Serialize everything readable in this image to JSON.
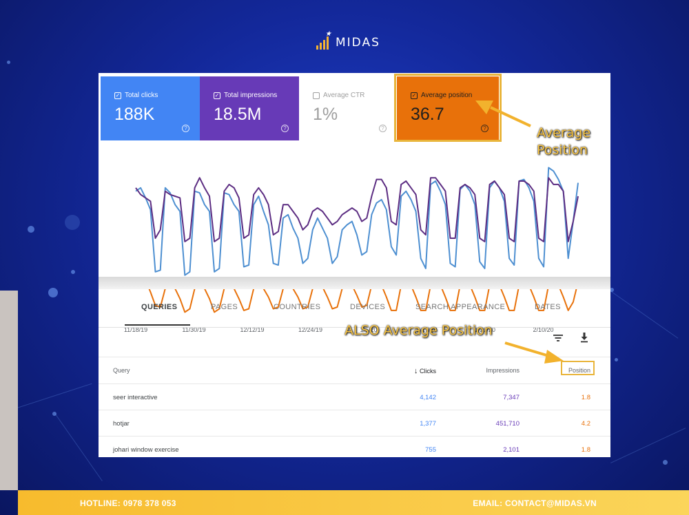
{
  "brand": {
    "name": "MIDAS"
  },
  "metrics": [
    {
      "label": "Total clicks",
      "value": "188K",
      "checked": true,
      "color": "#4285f4"
    },
    {
      "label": "Total impressions",
      "value": "18.5M",
      "checked": true,
      "color": "#673ab7"
    },
    {
      "label": "Average CTR",
      "value": "1%",
      "checked": false,
      "color": "#ffffff"
    },
    {
      "label": "Average position",
      "value": "36.7",
      "checked": true,
      "color": "#e8710a"
    }
  ],
  "chart_data": {
    "type": "line",
    "x_tick_labels": [
      "11/18/19",
      "11/30/19",
      "12/12/19",
      "12/24/19",
      "1/5/20",
      "1/17/20",
      "1/29/20",
      "2/10/20"
    ],
    "series": [
      {
        "metric": "Total clicks",
        "color": "#4d8fd1",
        "values": [
          0.78,
          0.8,
          0.74,
          0.67,
          0.3,
          0.31,
          0.8,
          0.77,
          0.7,
          0.66,
          0.28,
          0.3,
          0.78,
          0.77,
          0.7,
          0.66,
          0.3,
          0.32,
          0.77,
          0.76,
          0.7,
          0.66,
          0.33,
          0.34,
          0.7,
          0.75,
          0.66,
          0.58,
          0.35,
          0.34,
          0.62,
          0.64,
          0.56,
          0.5,
          0.35,
          0.38,
          0.55,
          0.62,
          0.56,
          0.5,
          0.35,
          0.39,
          0.55,
          0.58,
          0.6,
          0.52,
          0.4,
          0.42,
          0.64,
          0.71,
          0.73,
          0.67,
          0.45,
          0.4,
          0.75,
          0.78,
          0.73,
          0.66,
          0.38,
          0.32,
          0.82,
          0.84,
          0.78,
          0.7,
          0.35,
          0.33,
          0.79,
          0.82,
          0.78,
          0.7,
          0.36,
          0.32,
          0.8,
          0.84,
          0.8,
          0.72,
          0.38,
          0.34,
          0.84,
          0.85,
          0.8,
          0.72,
          0.38,
          0.33,
          0.92,
          0.9,
          0.85,
          0.78,
          0.38,
          0.6,
          0.83
        ]
      },
      {
        "metric": "Total impressions",
        "color": "#5c2d82",
        "values": [
          0.8,
          0.76,
          0.74,
          0.72,
          0.5,
          0.55,
          0.78,
          0.76,
          0.75,
          0.74,
          0.48,
          0.5,
          0.8,
          0.86,
          0.8,
          0.75,
          0.48,
          0.5,
          0.78,
          0.82,
          0.8,
          0.74,
          0.5,
          0.52,
          0.76,
          0.8,
          0.76,
          0.7,
          0.52,
          0.54,
          0.7,
          0.7,
          0.66,
          0.62,
          0.55,
          0.58,
          0.66,
          0.68,
          0.66,
          0.62,
          0.58,
          0.6,
          0.64,
          0.66,
          0.68,
          0.66,
          0.6,
          0.62,
          0.75,
          0.85,
          0.85,
          0.8,
          0.6,
          0.58,
          0.82,
          0.84,
          0.8,
          0.76,
          0.55,
          0.52,
          0.86,
          0.86,
          0.82,
          0.78,
          0.5,
          0.5,
          0.8,
          0.82,
          0.8,
          0.76,
          0.5,
          0.48,
          0.82,
          0.84,
          0.8,
          0.76,
          0.5,
          0.48,
          0.84,
          0.84,
          0.82,
          0.78,
          0.5,
          0.48,
          0.86,
          0.82,
          0.82,
          0.78,
          0.48,
          0.6,
          0.75
        ]
      },
      {
        "metric": "Average position",
        "color": "#e8710a",
        "values": [
          0.24,
          0.26,
          0.25,
          0.18,
          0.1,
          0.09,
          0.2,
          0.22,
          0.2,
          0.14,
          0.06,
          0.08,
          0.2,
          0.22,
          0.2,
          0.14,
          0.06,
          0.08,
          0.2,
          0.22,
          0.2,
          0.14,
          0.07,
          0.08,
          0.2,
          0.22,
          0.2,
          0.15,
          0.08,
          0.09,
          0.2,
          0.22,
          0.2,
          0.15,
          0.08,
          0.09,
          0.2,
          0.22,
          0.21,
          0.15,
          0.08,
          0.09,
          0.2,
          0.22,
          0.22,
          0.16,
          0.09,
          0.1,
          0.22,
          0.24,
          0.22,
          0.15,
          0.07,
          0.07,
          0.22,
          0.25,
          0.22,
          0.15,
          0.07,
          0.07,
          0.22,
          0.25,
          0.22,
          0.15,
          0.07,
          0.07,
          0.22,
          0.24,
          0.22,
          0.15,
          0.07,
          0.07,
          0.22,
          0.24,
          0.22,
          0.15,
          0.07,
          0.07,
          0.22,
          0.24,
          0.22,
          0.15,
          0.07,
          0.07,
          0.22,
          0.24,
          0.22,
          0.15,
          0.07,
          0.12,
          0.24
        ]
      }
    ]
  },
  "tabs": [
    "QUERIES",
    "PAGES",
    "COUNTRIES",
    "DEVICES",
    "SEARCH APPEARANCE",
    "DATES"
  ],
  "active_tab": "QUERIES",
  "toolbar": {
    "filter_icon": "filter-icon",
    "download_icon": "download-icon"
  },
  "table": {
    "headers": {
      "query": "Query",
      "clicks": "Clicks",
      "impressions": "Impressions",
      "position": "Position"
    },
    "sort_icon": "arrow-down-icon",
    "rows": [
      {
        "query": "seer interactive",
        "clicks": "4,142",
        "impressions": "7,347",
        "position": "1.8"
      },
      {
        "query": "hotjar",
        "clicks": "1,377",
        "impressions": "451,710",
        "position": "4.2"
      },
      {
        "query": "johari window exercise",
        "clicks": "755",
        "impressions": "2,101",
        "position": "1.8"
      }
    ]
  },
  "annotations": {
    "average_position": "Average Position",
    "also_average_position": "ALSO Average Position",
    "color": "#f7c342"
  },
  "footer": {
    "hotline": "HOTLINE: 0978 378 053",
    "email": "EMAIL: CONTACT@MIDAS.VN"
  }
}
